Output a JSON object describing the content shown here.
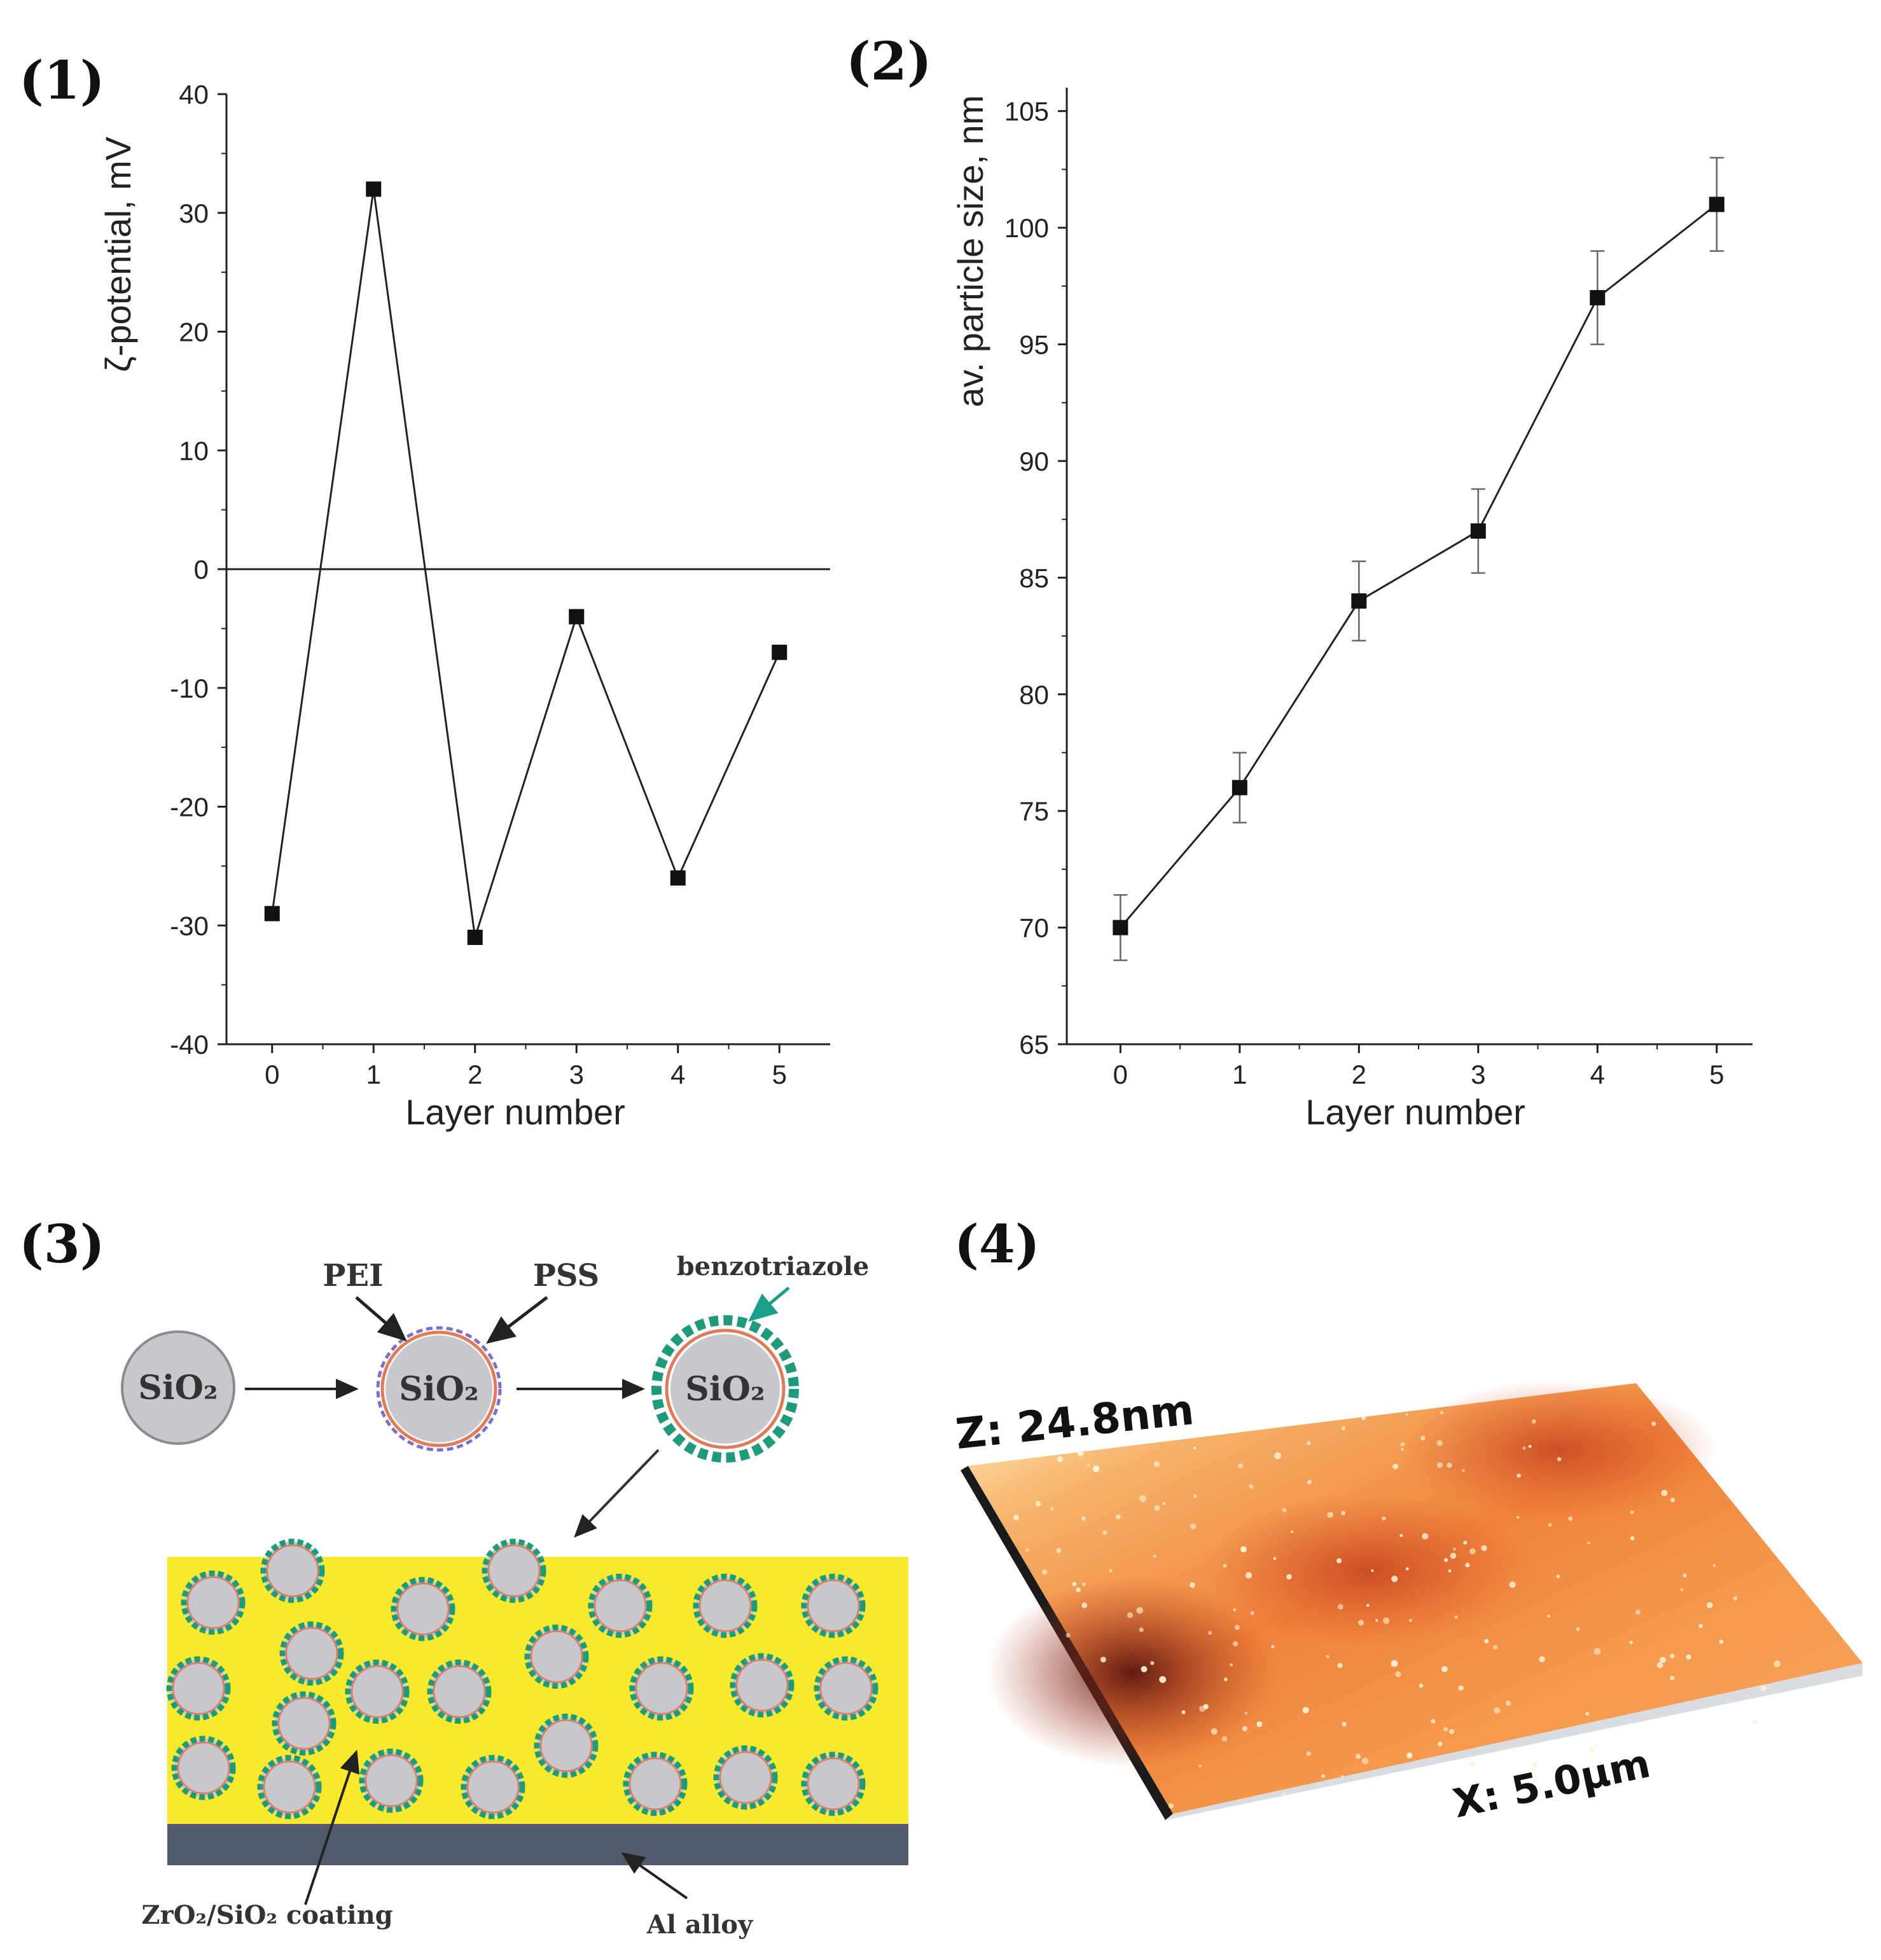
{
  "panels": {
    "p1": "(1)",
    "p2": "(2)",
    "p3": "(3)",
    "p4": "(4)"
  },
  "chart_data": [
    {
      "type": "line",
      "panel": "(1)",
      "title": "",
      "xlabel": "Layer number",
      "ylabel": "ζ-potential, mV",
      "x": [
        0,
        1,
        2,
        3,
        4,
        5
      ],
      "series": [
        {
          "name": "zeta-potential",
          "values": [
            -29,
            32,
            -31,
            -4,
            -26,
            -7
          ]
        }
      ],
      "xlim": [
        -0.45,
        5.5
      ],
      "ylim": [
        -40,
        40
      ],
      "xticks": [
        "0",
        "1",
        "2",
        "3",
        "4",
        "5"
      ],
      "yticks": [
        "40",
        "30",
        "20",
        "10",
        "0",
        "-10",
        "-20",
        "-30",
        "-40"
      ],
      "zero_line": true,
      "marker": "square",
      "grid": false
    },
    {
      "type": "line",
      "panel": "(2)",
      "title": "",
      "xlabel": "Layer number",
      "ylabel": "av. particle size, nm",
      "x": [
        0,
        1,
        2,
        3,
        4,
        5
      ],
      "series": [
        {
          "name": "particle size",
          "values": [
            70,
            76,
            84,
            87,
            97,
            101
          ],
          "error": [
            1.4,
            1.5,
            1.7,
            1.8,
            2.0,
            2.0
          ]
        }
      ],
      "xlim": [
        -0.45,
        5.3
      ],
      "ylim": [
        65,
        106
      ],
      "xticks": [
        "0",
        "1",
        "2",
        "3",
        "4",
        "5"
      ],
      "yticks": [
        "105",
        "100",
        "95",
        "90",
        "85",
        "80",
        "75",
        "70",
        "65"
      ],
      "marker": "square",
      "grid": false
    }
  ],
  "diagram": {
    "core_label": "SiO₂",
    "pei_label": "PEI",
    "pss_label": "PSS",
    "inhibitor_label": "benzotriazole",
    "coating_label": "ZrO₂/SiO₂ coating",
    "substrate_label": "Al alloy",
    "colors": {
      "coating": "#f7ea2e",
      "substrate": "#525a6e",
      "particle": "#c8c8cc",
      "shell": "#1f9a7a",
      "arrow": "#1aa08a"
    }
  },
  "afm": {
    "z_label": "Z: 24.8nm",
    "x_label": "X: 5.0µm",
    "colors": {
      "high": "#ffe9b0",
      "mid": "#f08a3c",
      "low": "#7a1f14"
    }
  }
}
